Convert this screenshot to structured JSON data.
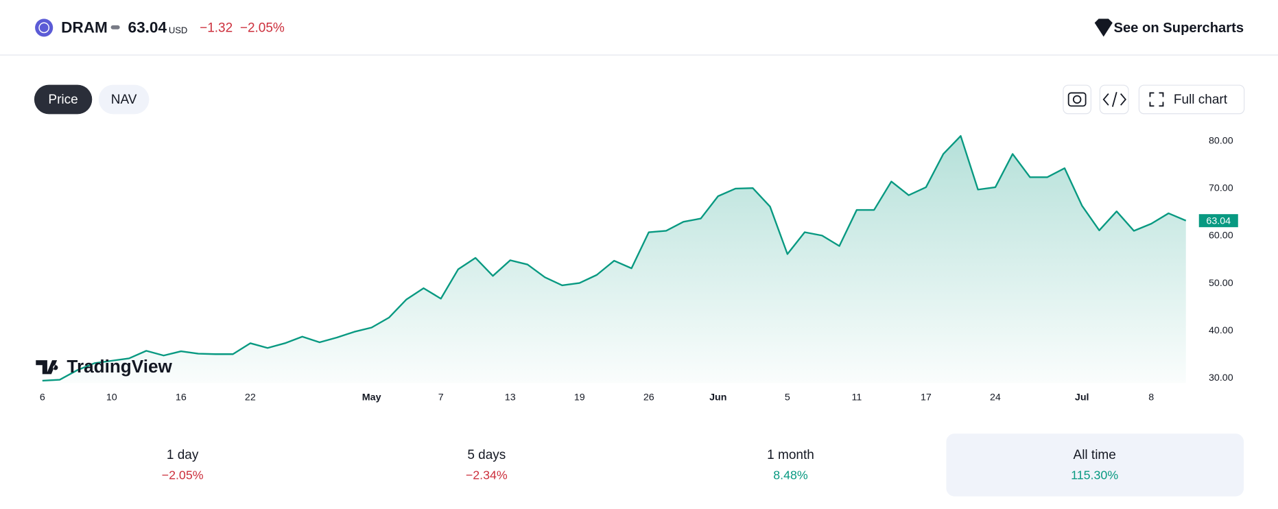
{
  "header": {
    "ticker": "DRAM",
    "price": "63.04",
    "currency": "USD",
    "change": "−1.32",
    "change_percent": "−2.05%",
    "link": "See on Supercharts"
  },
  "tabs": [
    "Price",
    "NAV"
  ],
  "buttons": {
    "full_chart": "Full chart"
  },
  "logo": "TradingView",
  "chart_data": {
    "type": "line",
    "color": "#089981",
    "categories": [
      "6",
      null,
      null,
      null,
      "10",
      null,
      null,
      null,
      "16",
      null,
      null,
      null,
      "22",
      null,
      null,
      null,
      null,
      null,
      null,
      "May",
      null,
      null,
      null,
      "7",
      null,
      null,
      null,
      "13",
      null,
      null,
      null,
      "19",
      null,
      null,
      null,
      "26",
      null,
      null,
      null,
      "Jun",
      null,
      null,
      null,
      "5",
      null,
      null,
      null,
      "11",
      null,
      null,
      null,
      "17",
      null,
      null,
      null,
      "24",
      null,
      null,
      null,
      null,
      "Jul",
      null,
      null,
      null,
      "8",
      null,
      null
    ],
    "values": [
      29.3,
      29.5,
      31.5,
      33,
      33.5,
      34,
      35.6,
      34.6,
      35.5,
      35,
      34.9,
      34.9,
      37.2,
      36.2,
      37.2,
      38.6,
      37.4,
      38.4,
      39.6,
      40.5,
      42.6,
      46.4,
      48.8,
      46.6,
      52.8,
      55.2,
      51.4,
      54.7,
      53.8,
      51.1,
      49.4,
      49.9,
      51.6,
      54.6,
      53,
      60.6,
      60.9,
      62.8,
      63.5,
      68.2,
      69.8,
      69.9,
      66,
      56,
      60.6,
      59.9,
      57.7,
      65.3,
      65.3,
      71.3,
      68.4,
      70.1,
      77.1,
      80.9,
      69.6,
      70.1,
      77.1,
      72.2,
      72.2,
      74.1,
      66.2,
      61,
      65,
      60.9,
      62.4,
      64.6,
      63.04
    ],
    "ylim": [
      28.8,
      82
    ],
    "yticks": [
      {
        "value": 30,
        "label": "30.00"
      },
      {
        "value": 40,
        "label": "40.00"
      },
      {
        "value": 50,
        "label": "50.00"
      },
      {
        "value": 60,
        "label": "60.00"
      },
      {
        "value": 70,
        "label": "70.00"
      },
      {
        "value": 80,
        "label": "80.00"
      }
    ]
  },
  "stats": [
    {
      "label": "1 day",
      "value": "−2.05%",
      "trend": "down"
    },
    {
      "label": "5 days",
      "value": "−2.34%",
      "trend": "down"
    },
    {
      "label": "1 month",
      "value": "8.48%",
      "trend": "up"
    },
    {
      "label": "All time",
      "value": "115.30%",
      "trend": "up"
    }
  ]
}
